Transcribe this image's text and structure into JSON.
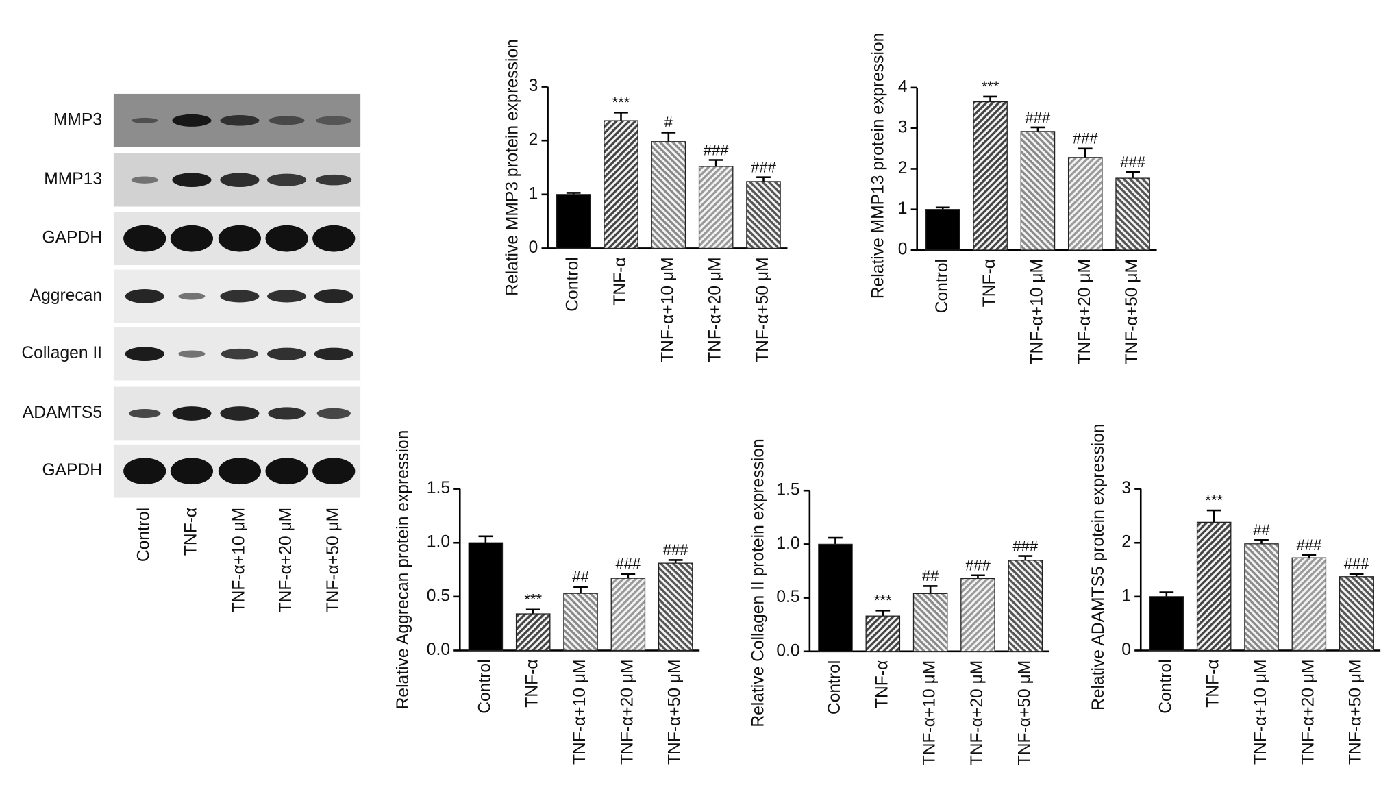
{
  "blot": {
    "rows": [
      "MMP3",
      "MMP13",
      "GAPDH",
      "Aggrecan",
      "Collagen II",
      "ADAMTS5",
      "GAPDH"
    ],
    "lanes": [
      "Control",
      "TNF-α",
      "TNF-α+10 μM",
      "TNF-α+20 μM",
      "TNF-α+50 μM"
    ]
  },
  "chart_data": [
    {
      "type": "bar",
      "y_label": "Relative MMP3 protein expression",
      "categories": [
        "Control",
        "TNF-α",
        "TNF-α+10 μM",
        "TNF-α+20 μM",
        "TNF-α+50 μM"
      ],
      "values": [
        1.0,
        2.37,
        1.98,
        1.52,
        1.24
      ],
      "errors": [
        0.03,
        0.15,
        0.17,
        0.12,
        0.08
      ],
      "annotations": [
        null,
        "***",
        "#",
        "###",
        "###"
      ],
      "colors": [
        "#000000",
        "#444444",
        "#8a8a8a",
        "#9a9a9a",
        "#555555"
      ],
      "ylim": [
        0,
        3
      ],
      "yticks": [
        0,
        1,
        2,
        3
      ]
    },
    {
      "type": "bar",
      "y_label": "Relative MMP13 protein expression",
      "categories": [
        "Control",
        "TNF-α",
        "TNF-α+10 μM",
        "TNF-α+20 μM",
        "TNF-α+50 μM"
      ],
      "values": [
        1.0,
        3.65,
        2.92,
        2.28,
        1.77
      ],
      "errors": [
        0.05,
        0.13,
        0.1,
        0.22,
        0.15
      ],
      "annotations": [
        null,
        "***",
        "###",
        "###",
        "###"
      ],
      "colors": [
        "#000000",
        "#444444",
        "#8a8a8a",
        "#9a9a9a",
        "#555555"
      ],
      "ylim": [
        0,
        4
      ],
      "yticks": [
        0,
        1,
        2,
        3,
        4
      ]
    },
    {
      "type": "bar",
      "y_label": "Relative Aggrecan protein expression",
      "categories": [
        "Control",
        "TNF-α",
        "TNF-α+10 μM",
        "TNF-α+20 μM",
        "TNF-α+50 μM"
      ],
      "values": [
        1.0,
        0.34,
        0.53,
        0.67,
        0.81
      ],
      "errors": [
        0.06,
        0.04,
        0.06,
        0.04,
        0.03
      ],
      "annotations": [
        null,
        "***",
        "##",
        "###",
        "###"
      ],
      "colors": [
        "#000000",
        "#444444",
        "#8a8a8a",
        "#9a9a9a",
        "#555555"
      ],
      "ylim": [
        0,
        1.5
      ],
      "yticks": [
        {
          "value": 0,
          "label": "0.0"
        },
        0.5,
        {
          "value": 1,
          "label": "1.0"
        },
        1.5
      ]
    },
    {
      "type": "bar",
      "y_label": "Relative Collagen II protein expression",
      "categories": [
        "Control",
        "TNF-α",
        "TNF-α+10 μM",
        "TNF-α+20 μM",
        "TNF-α+50 μM"
      ],
      "values": [
        1.0,
        0.33,
        0.54,
        0.68,
        0.85
      ],
      "errors": [
        0.06,
        0.05,
        0.07,
        0.03,
        0.04
      ],
      "annotations": [
        null,
        "***",
        "##",
        "###",
        "###"
      ],
      "colors": [
        "#000000",
        "#444444",
        "#8a8a8a",
        "#9a9a9a",
        "#555555"
      ],
      "ylim": [
        0,
        1.5
      ],
      "yticks": [
        {
          "value": 0,
          "label": "0.0"
        },
        0.5,
        {
          "value": 1,
          "label": "1.0"
        },
        1.5
      ]
    },
    {
      "type": "bar",
      "y_label": "Relative ADAMTS5 protein expression",
      "categories": [
        "Control",
        "TNF-α",
        "TNF-α+10 μM",
        "TNF-α+20 μM",
        "TNF-α+50 μM"
      ],
      "values": [
        1.0,
        2.38,
        1.98,
        1.72,
        1.37
      ],
      "errors": [
        0.08,
        0.22,
        0.07,
        0.05,
        0.05
      ],
      "annotations": [
        null,
        "***",
        "##",
        "###",
        "###"
      ],
      "colors": [
        "#000000",
        "#444444",
        "#8a8a8a",
        "#9a9a9a",
        "#555555"
      ],
      "ylim": [
        0,
        3
      ],
      "yticks": [
        0,
        1,
        2,
        3
      ]
    }
  ]
}
